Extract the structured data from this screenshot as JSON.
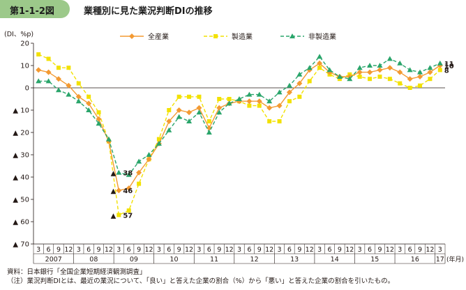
{
  "figure": {
    "label": "第1-1-2図",
    "title": "業種別に見た業況判断DIの推移"
  },
  "footer": {
    "source": "資料：日本銀行「全国企業短期経済観測調査」",
    "note": "（注）業況判断DIとは、最近の業況について、「良い」と答えた企業の割合（%）から「悪い」と答えた企業の割合を引いたもの。"
  },
  "chart_data": {
    "type": "line",
    "ylabel": "(DI、%p)",
    "ylim": [
      -70,
      20
    ],
    "yticks": [
      {
        "v": 20,
        "label": "20"
      },
      {
        "v": 10,
        "label": "10"
      },
      {
        "v": 0,
        "label": "0"
      },
      {
        "v": -10,
        "label": "▲ 10"
      },
      {
        "v": -20,
        "label": "▲ 20"
      },
      {
        "v": -30,
        "label": "▲ 30"
      },
      {
        "v": -40,
        "label": "▲ 40"
      },
      {
        "v": -50,
        "label": "▲ 50"
      },
      {
        "v": -60,
        "label": "▲ 60"
      },
      {
        "v": -70,
        "label": "▲ 70"
      }
    ],
    "x_unit_label": "(年月)",
    "months": [
      "3",
      "6",
      "9",
      "12",
      "3",
      "6",
      "9",
      "12",
      "3",
      "6",
      "9",
      "12",
      "3",
      "6",
      "9",
      "12",
      "3",
      "6",
      "9",
      "12",
      "3",
      "6",
      "9",
      "12",
      "3",
      "6",
      "9",
      "12",
      "3",
      "6",
      "9",
      "12",
      "3",
      "6",
      "9",
      "12",
      "3",
      "6",
      "9",
      "12",
      "3"
    ],
    "years": [
      {
        "label": "2007",
        "start": 0,
        "end": 3
      },
      {
        "label": "08",
        "start": 4,
        "end": 7
      },
      {
        "label": "09",
        "start": 8,
        "end": 11
      },
      {
        "label": "10",
        "start": 12,
        "end": 15
      },
      {
        "label": "11",
        "start": 16,
        "end": 19
      },
      {
        "label": "12",
        "start": 20,
        "end": 23
      },
      {
        "label": "13",
        "start": 24,
        "end": 27
      },
      {
        "label": "14",
        "start": 28,
        "end": 31
      },
      {
        "label": "15",
        "start": 32,
        "end": 35
      },
      {
        "label": "16",
        "start": 36,
        "end": 39
      },
      {
        "label": "17",
        "start": 40,
        "end": 40
      }
    ],
    "series": [
      {
        "name": "全産業",
        "color": "#f39a32",
        "dash": "none",
        "marker": "diamond",
        "values": [
          8,
          7,
          4,
          1,
          -4,
          -7,
          -14,
          -24,
          -46,
          -45,
          -38,
          -32,
          -25,
          -15,
          -10,
          -11,
          -9,
          -18,
          -9,
          -7,
          -6,
          -6,
          -6,
          -9,
          -8,
          -2,
          2,
          8,
          11,
          7,
          5,
          5,
          7,
          7,
          8,
          9,
          7,
          4,
          5,
          7,
          10
        ]
      },
      {
        "name": "製造業",
        "color": "#f2e100",
        "dash": "5,3",
        "marker": "square",
        "values": [
          15,
          13,
          9,
          9,
          2,
          -4,
          -11,
          -24,
          -57,
          -55,
          -43,
          -32,
          -23,
          -10,
          -4,
          -4,
          -4,
          -15,
          -5,
          -5,
          -6,
          -8,
          -8,
          -15,
          -15,
          -6,
          -4,
          3,
          9,
          6,
          4,
          6,
          5,
          4,
          5,
          4,
          2,
          0,
          1,
          4,
          8
        ]
      },
      {
        "name": "非製造業",
        "color": "#2aa56b",
        "dash": "5,3",
        "marker": "triangle",
        "values": [
          3,
          3,
          -1,
          -3,
          -6,
          -10,
          -16,
          -23,
          -38,
          -39,
          -33,
          -30,
          -25,
          -19,
          -13,
          -15,
          -11,
          -20,
          -11,
          -7,
          -5,
          -3,
          -3,
          -6,
          -2,
          1,
          6,
          9,
          14,
          8,
          5,
          4,
          9,
          10,
          10,
          13,
          11,
          8,
          7,
          9,
          11
        ]
      }
    ],
    "value_labels": [
      {
        "text": "▲",
        "value_text": "38",
        "index": 8,
        "v": -38,
        "series": "非製造業"
      },
      {
        "text": "▲",
        "value_text": "46",
        "index": 8,
        "v": -46,
        "series": "全産業"
      },
      {
        "text": "▲",
        "value_text": "57",
        "index": 8,
        "v": -57,
        "series": "製造業"
      },
      {
        "value_text": "11",
        "index": 40,
        "v": 11,
        "series": "非製造業"
      },
      {
        "value_text": "10",
        "index": 40,
        "v": 10,
        "series": "全産業"
      },
      {
        "value_text": "8",
        "index": 40,
        "v": 8,
        "series": "製造業"
      }
    ],
    "legend": "top"
  }
}
